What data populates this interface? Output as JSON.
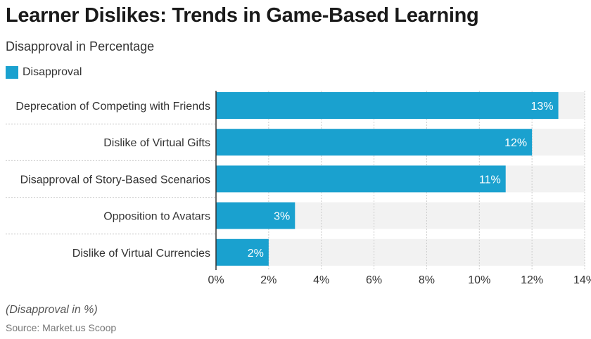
{
  "title": "Learner Dislikes: Trends in Game-Based Learning",
  "subtitle": "Disapproval in Percentage",
  "note": "(Disapproval in %)",
  "source": "Source: Market.us Scoop",
  "colors": {
    "bar": "#1aa1cf",
    "track": "#f2f2f2",
    "grid": "#cccccc",
    "axis": "#333333",
    "bar_label": "#ffffff",
    "text": "#333333"
  },
  "chart_data": {
    "type": "bar",
    "orientation": "horizontal",
    "categories": [
      "Deprecation of Competing with Friends",
      "Dislike of Virtual Gifts",
      "Disapproval of Story-Based Scenarios",
      "Opposition to Avatars",
      "Dislike of Virtual Currencies"
    ],
    "series": [
      {
        "name": "Disapproval",
        "values": [
          13,
          12,
          11,
          3,
          2
        ]
      }
    ],
    "data_labels": [
      "13%",
      "12%",
      "11%",
      "3%",
      "2%"
    ],
    "xlim": [
      0,
      14
    ],
    "x_ticks": [
      0,
      2,
      4,
      6,
      8,
      10,
      12,
      14
    ],
    "x_tick_labels": [
      "0%",
      "2%",
      "4%",
      "6%",
      "8%",
      "10%",
      "12%",
      "14%"
    ],
    "grid": true,
    "legend_position": "top-left"
  }
}
